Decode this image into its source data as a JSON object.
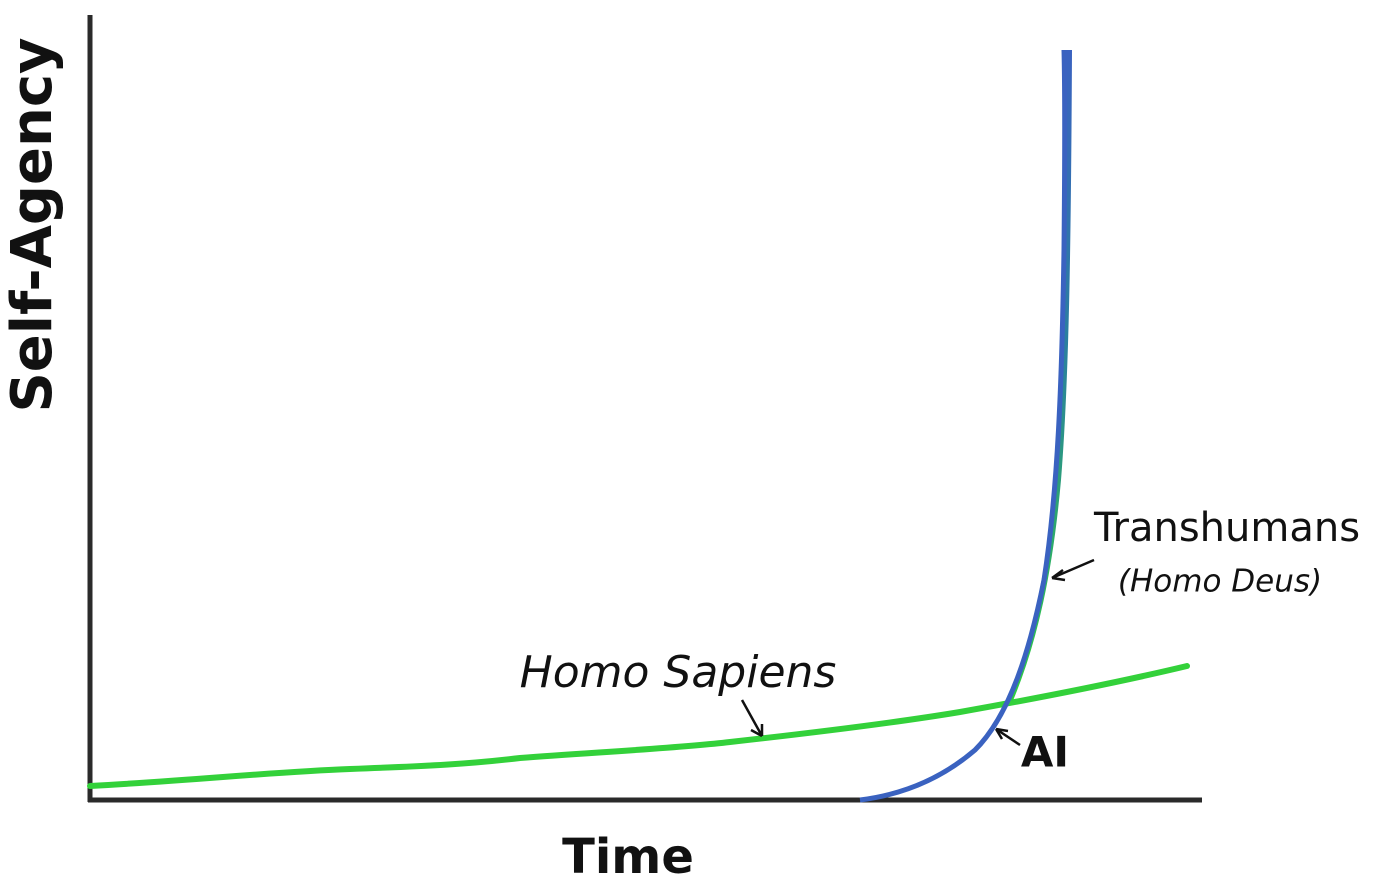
{
  "y_axis_label": "Self-Agency",
  "x_axis_label": "Time",
  "annotations": {
    "homo_sapiens": "Homo Sapiens",
    "transhumans": "Transhumans",
    "homo_deus": "(Homo Deus)",
    "ai": "AI"
  }
}
